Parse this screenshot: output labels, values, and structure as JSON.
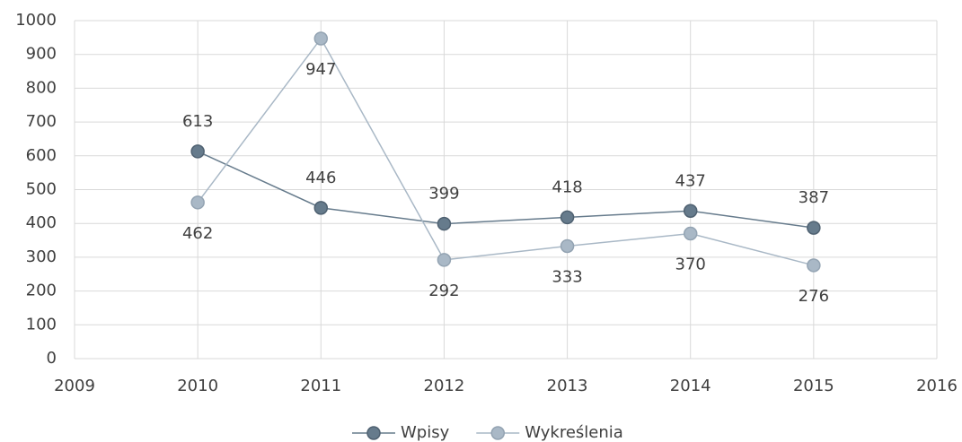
{
  "chart_data": {
    "type": "line",
    "x": [
      2010,
      2011,
      2012,
      2013,
      2014,
      2015
    ],
    "series": [
      {
        "name": "Wpisy",
        "color": "#667b8c",
        "values": [
          613,
          446,
          399,
          418,
          437,
          387
        ]
      },
      {
        "name": "Wykreślenia",
        "color": "#a9b8c6",
        "values": [
          462,
          947,
          292,
          333,
          370,
          276
        ]
      }
    ],
    "xlim": [
      2009,
      2016
    ],
    "xticks": [
      2009,
      2010,
      2011,
      2012,
      2013,
      2014,
      2015,
      2016
    ],
    "ylim": [
      0,
      1000
    ],
    "yticks": [
      0,
      100,
      200,
      300,
      400,
      500,
      600,
      700,
      800,
      900,
      1000
    ],
    "grid": true,
    "legend": "bottom"
  }
}
